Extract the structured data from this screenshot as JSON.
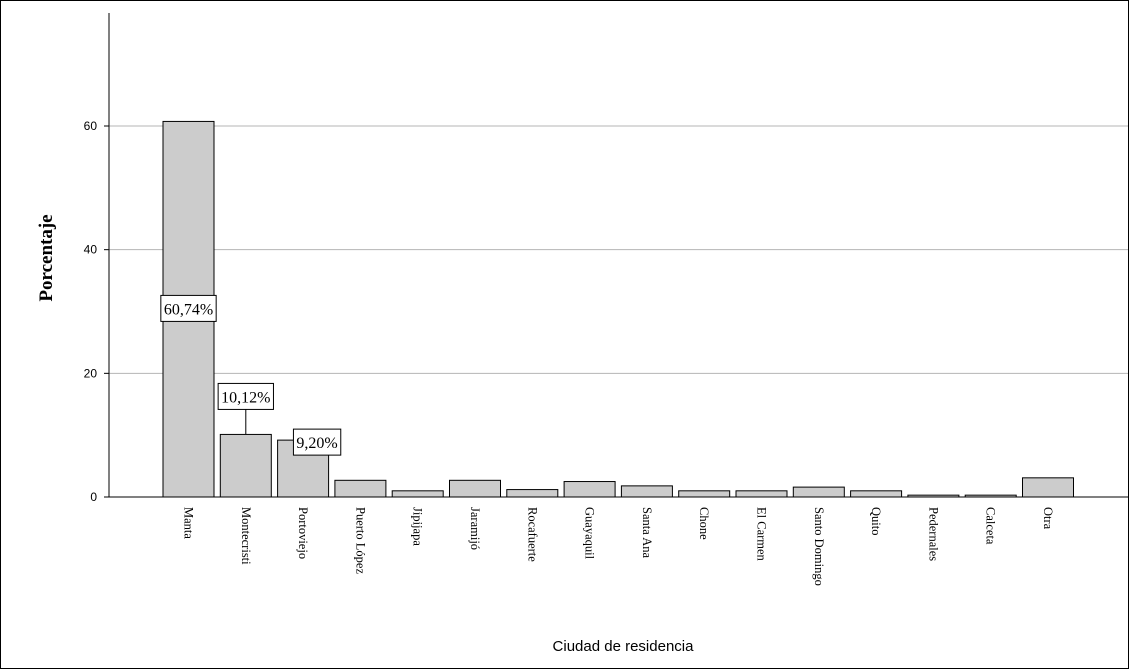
{
  "chart_data": {
    "type": "bar",
    "xlabel": "Ciudad de residencia",
    "ylabel": "Porcentaje",
    "ylim": [
      0,
      78
    ],
    "yticks": [
      0,
      20,
      40,
      60
    ],
    "grid": true,
    "bar_color": "#cccccc",
    "categories": [
      "Manta",
      "Montecristi",
      "Portoviejo",
      "Puerto López",
      "Jipijapa",
      "Jaramijó",
      "Rocafuerte",
      "Guayaquil",
      "Santa Ana",
      "Chone",
      "El Carmen",
      "Santo Domingo",
      "Quito",
      "Pedernales",
      "Calceta",
      "Otra"
    ],
    "values": [
      60.74,
      10.12,
      9.2,
      2.7,
      1.0,
      2.7,
      1.2,
      2.5,
      1.8,
      1.0,
      1.0,
      1.6,
      1.0,
      0.3,
      0.3,
      3.1
    ],
    "data_labels": [
      {
        "category": "Manta",
        "text": "60,74%"
      },
      {
        "category": "Montecristi",
        "text": "10,12%"
      },
      {
        "category": "Portoviejo",
        "text": "9,20%"
      }
    ]
  }
}
